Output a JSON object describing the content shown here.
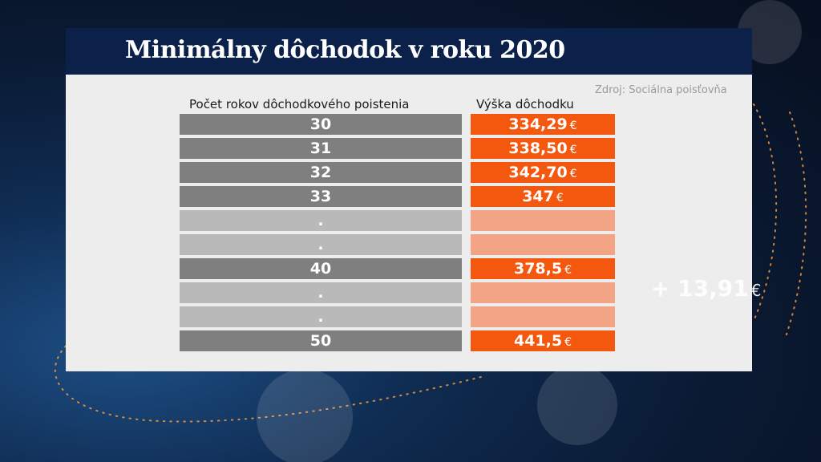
{
  "title": "Minimálny dôchodok v roku 2020",
  "source": "Zdroj: Sociálna poisťovňa",
  "headers": {
    "years": "Počet rokov dôchodkového poistenia",
    "amount": "Výška dôchodku"
  },
  "currency": "€",
  "rows": [
    {
      "years": "30",
      "amount": "334,29"
    },
    {
      "years": "31",
      "amount": "338,50"
    },
    {
      "years": "32",
      "amount": "342,70"
    },
    {
      "years": "33",
      "amount": "347"
    },
    {
      "years": ".",
      "amount": ""
    },
    {
      "years": ".",
      "amount": ""
    },
    {
      "years": "40",
      "amount": "378,5"
    },
    {
      "years": ".",
      "amount": ""
    },
    {
      "years": ".",
      "amount": ""
    },
    {
      "years": "50",
      "amount": "441,5"
    }
  ],
  "difference": "+ 13,91",
  "colors": {
    "title_bar": "#0b2149",
    "year_cell": "#7f7f7f",
    "year_cell_empty": "#b9b9b9",
    "amount_cell": "#f4580f",
    "amount_cell_empty": "#f2a484"
  }
}
